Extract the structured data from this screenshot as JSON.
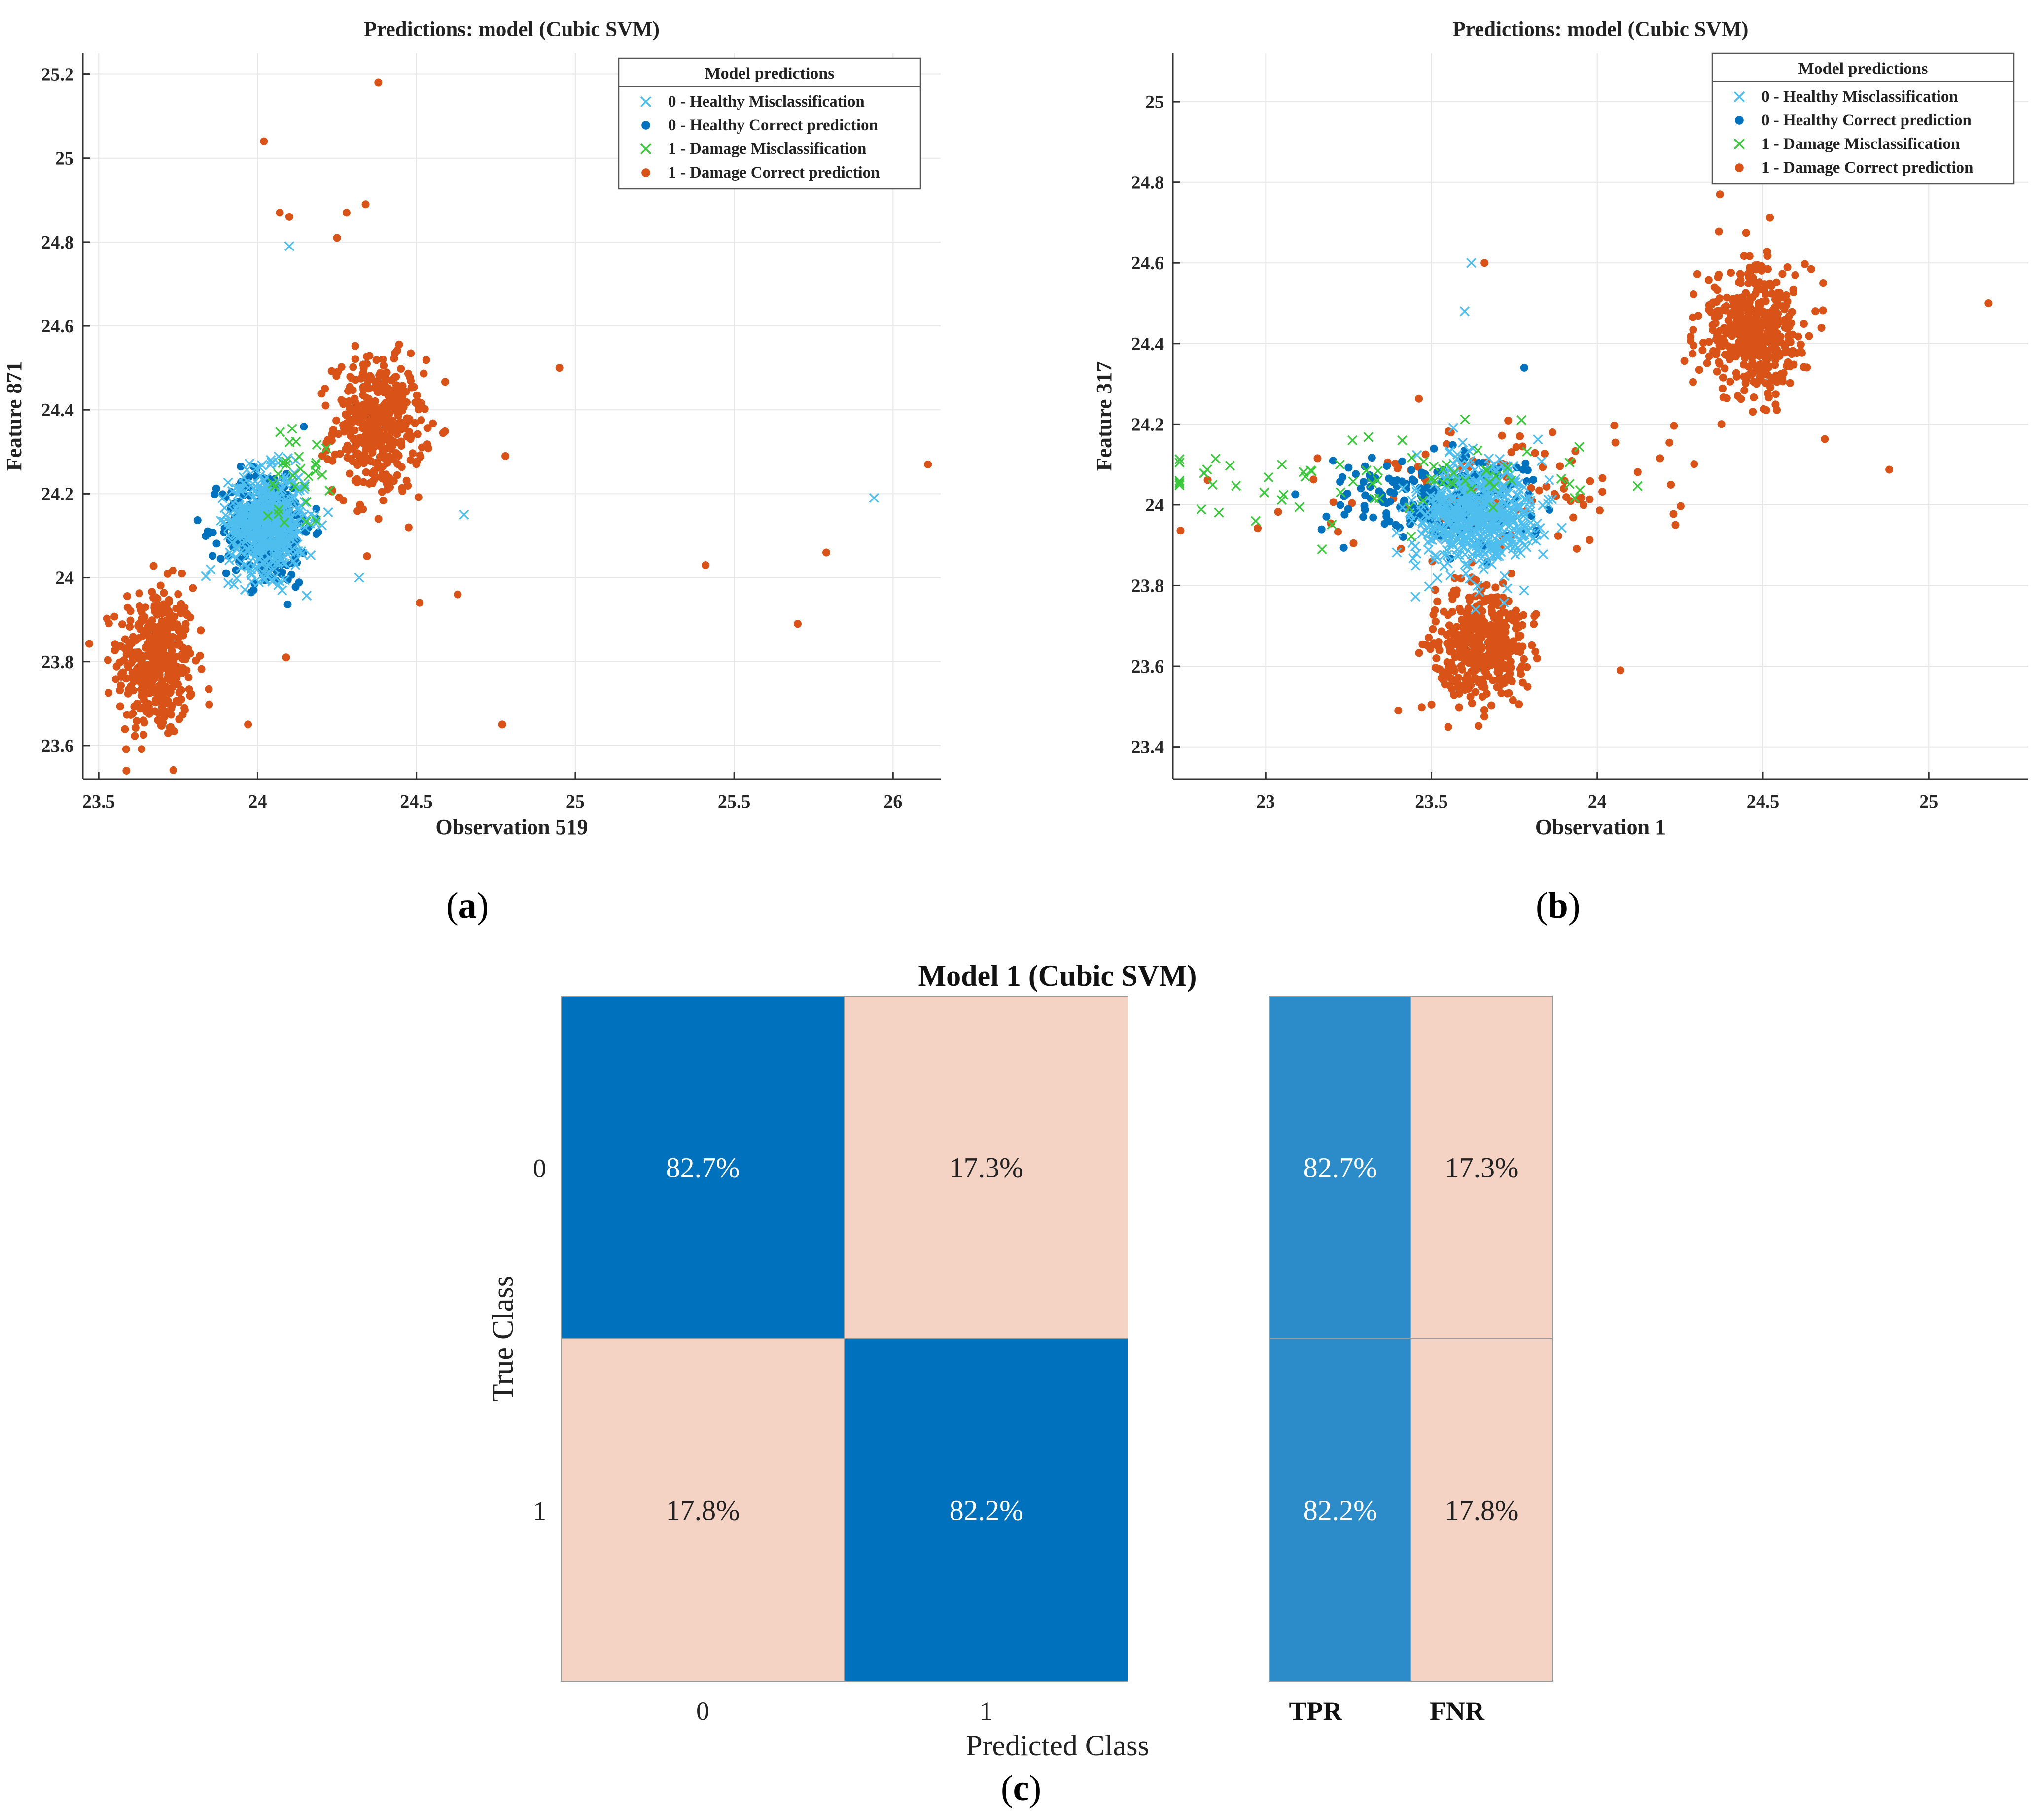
{
  "colors": {
    "healthy_miss": "#4DBEEE",
    "healthy_correct": "#0072BD",
    "damage_miss": "#3CC83C",
    "damage_correct": "#D95319",
    "cm_blue": "#0072BD",
    "cm_blue_light": "#2C8BC9",
    "cm_pink": "#F5D3C4",
    "grid": "#e6e6e6"
  },
  "captions": {
    "a": "a",
    "b": "b",
    "c": "c"
  },
  "chart_data": [
    {
      "id": "a",
      "type": "scatter",
      "title": "Predictions: model  (Cubic SVM)",
      "xlabel": "Observation 519",
      "ylabel": "Feature 871",
      "xlim": [
        23.45,
        26.15
      ],
      "ylim": [
        23.52,
        25.25
      ],
      "xticks": [
        23.5,
        24,
        24.5,
        25,
        25.5,
        26
      ],
      "xtick_labels": [
        "23.5",
        "24",
        "24.5",
        "25",
        "25.5",
        "26"
      ],
      "yticks": [
        23.6,
        23.8,
        24,
        24.2,
        24.4,
        24.6,
        24.8,
        25,
        25.2
      ],
      "ytick_labels": [
        "23.6",
        "23.8",
        "24",
        "24.2",
        "24.4",
        "24.6",
        "24.8",
        "25",
        "25.2"
      ],
      "legend_title": "Model predictions",
      "legend_position": "top-right",
      "legend": [
        "0 - Healthy Misclassification",
        "0 - Healthy Correct prediction",
        "1 - Damage Misclassification",
        "1 - Damage Correct prediction"
      ],
      "clusters": [
        {
          "series": 3,
          "cx": 23.68,
          "cy": 23.8,
          "sx": 0.06,
          "sy": 0.09,
          "n": 420
        },
        {
          "series": 3,
          "cx": 24.38,
          "cy": 24.36,
          "sx": 0.07,
          "sy": 0.08,
          "n": 420
        },
        {
          "series": 1,
          "cx": 24.03,
          "cy": 24.12,
          "sx": 0.07,
          "sy": 0.07,
          "n": 300
        },
        {
          "series": 0,
          "cx": 24.03,
          "cy": 24.13,
          "sx": 0.06,
          "sy": 0.06,
          "n": 520
        },
        {
          "series": 2,
          "cx": 24.12,
          "cy": 24.25,
          "sx": 0.05,
          "sy": 0.06,
          "n": 30
        }
      ],
      "outliers": [
        {
          "series": 3,
          "x": 24.38,
          "y": 25.18
        },
        {
          "series": 3,
          "x": 24.02,
          "y": 25.04
        },
        {
          "series": 3,
          "x": 24.07,
          "y": 24.87
        },
        {
          "series": 3,
          "x": 24.1,
          "y": 24.86
        },
        {
          "series": 3,
          "x": 24.28,
          "y": 24.87
        },
        {
          "series": 3,
          "x": 24.34,
          "y": 24.89
        },
        {
          "series": 3,
          "x": 24.25,
          "y": 24.81
        },
        {
          "series": 0,
          "x": 24.1,
          "y": 24.79
        },
        {
          "series": 3,
          "x": 24.95,
          "y": 24.5
        },
        {
          "series": 3,
          "x": 24.78,
          "y": 24.29
        },
        {
          "series": 0,
          "x": 24.65,
          "y": 24.15
        },
        {
          "series": 3,
          "x": 25.41,
          "y": 24.03
        },
        {
          "series": 3,
          "x": 25.79,
          "y": 24.06
        },
        {
          "series": 3,
          "x": 25.7,
          "y": 23.89
        },
        {
          "series": 3,
          "x": 26.11,
          "y": 24.27
        },
        {
          "series": 0,
          "x": 25.94,
          "y": 24.19
        },
        {
          "series": 3,
          "x": 24.77,
          "y": 23.65
        },
        {
          "series": 3,
          "x": 24.51,
          "y": 23.94
        },
        {
          "series": 3,
          "x": 24.63,
          "y": 23.96
        },
        {
          "series": 0,
          "x": 24.32,
          "y": 24.0
        },
        {
          "series": 3,
          "x": 23.97,
          "y": 23.65
        },
        {
          "series": 3,
          "x": 24.09,
          "y": 23.81
        }
      ]
    },
    {
      "id": "b",
      "type": "scatter",
      "title": "Predictions: model  (Cubic SVM)",
      "xlabel": "Observation 1",
      "ylabel": "Feature 317",
      "xlim": [
        22.72,
        25.3
      ],
      "ylim": [
        23.32,
        25.12
      ],
      "xticks": [
        23,
        23.5,
        24,
        24.5,
        25
      ],
      "xtick_labels": [
        "23",
        "23.5",
        "24",
        "24.5",
        "25"
      ],
      "yticks": [
        23.4,
        23.6,
        23.8,
        24,
        24.2,
        24.4,
        24.6,
        24.8,
        25
      ],
      "ytick_labels": [
        "23.4",
        "23.6",
        "23.8",
        "24",
        "24.2",
        "24.4",
        "24.6",
        "24.8",
        "25"
      ],
      "legend_title": "Model predictions",
      "legend_position": "top-right",
      "legend": [
        "0 - Healthy Misclassification",
        "0 - Healthy Correct prediction",
        "1 - Damage Misclassification",
        "1 - Damage Correct prediction"
      ],
      "clusters": [
        {
          "series": 3,
          "cx": 24.47,
          "cy": 24.43,
          "sx": 0.08,
          "sy": 0.08,
          "n": 450
        },
        {
          "series": 3,
          "cx": 23.65,
          "cy": 23.65,
          "sx": 0.07,
          "sy": 0.07,
          "n": 420
        },
        {
          "series": 3,
          "cx": 23.75,
          "cy": 24.05,
          "sx": 0.3,
          "sy": 0.08,
          "n": 120
        },
        {
          "series": 1,
          "cx": 23.5,
          "cy": 24.02,
          "sx": 0.14,
          "sy": 0.05,
          "n": 220
        },
        {
          "series": 0,
          "cx": 23.63,
          "cy": 23.98,
          "sx": 0.09,
          "sy": 0.07,
          "n": 550
        },
        {
          "series": 2,
          "cx": 23.4,
          "cy": 24.06,
          "sx": 0.4,
          "sy": 0.06,
          "n": 70
        }
      ],
      "outliers": [
        {
          "series": 0,
          "x": 23.62,
          "y": 24.6
        },
        {
          "series": 3,
          "x": 23.66,
          "y": 24.6
        },
        {
          "series": 0,
          "x": 23.6,
          "y": 24.48
        },
        {
          "series": 1,
          "x": 23.78,
          "y": 24.34
        },
        {
          "series": 3,
          "x": 25.18,
          "y": 24.5
        },
        {
          "series": 3,
          "x": 24.07,
          "y": 23.59
        },
        {
          "series": 3,
          "x": 24.37,
          "y": 24.77
        },
        {
          "series": 2,
          "x": 22.84,
          "y": 24.05
        },
        {
          "series": 2,
          "x": 22.97,
          "y": 23.96
        },
        {
          "series": 2,
          "x": 23.17,
          "y": 23.89
        },
        {
          "series": 3,
          "x": 23.4,
          "y": 23.49
        }
      ]
    },
    {
      "id": "c",
      "type": "heatmap",
      "title": "Model 1 (Cubic SVM)",
      "xlabel": "Predicted Class",
      "ylabel": "True Class",
      "row_labels": [
        "0",
        "1"
      ],
      "col_labels": [
        "0",
        "1"
      ],
      "matrix": [
        [
          "82.7%",
          "17.3%"
        ],
        [
          "17.8%",
          "82.2%"
        ]
      ],
      "values": [
        [
          82.7,
          17.3
        ],
        [
          17.8,
          82.2
        ]
      ],
      "rate_labels": [
        "TPR",
        "FNR"
      ],
      "rates": [
        [
          "82.7%",
          "17.3%"
        ],
        [
          "82.2%",
          "17.8%"
        ]
      ],
      "rate_values": [
        [
          82.7,
          17.3
        ],
        [
          82.2,
          17.8
        ]
      ]
    }
  ]
}
